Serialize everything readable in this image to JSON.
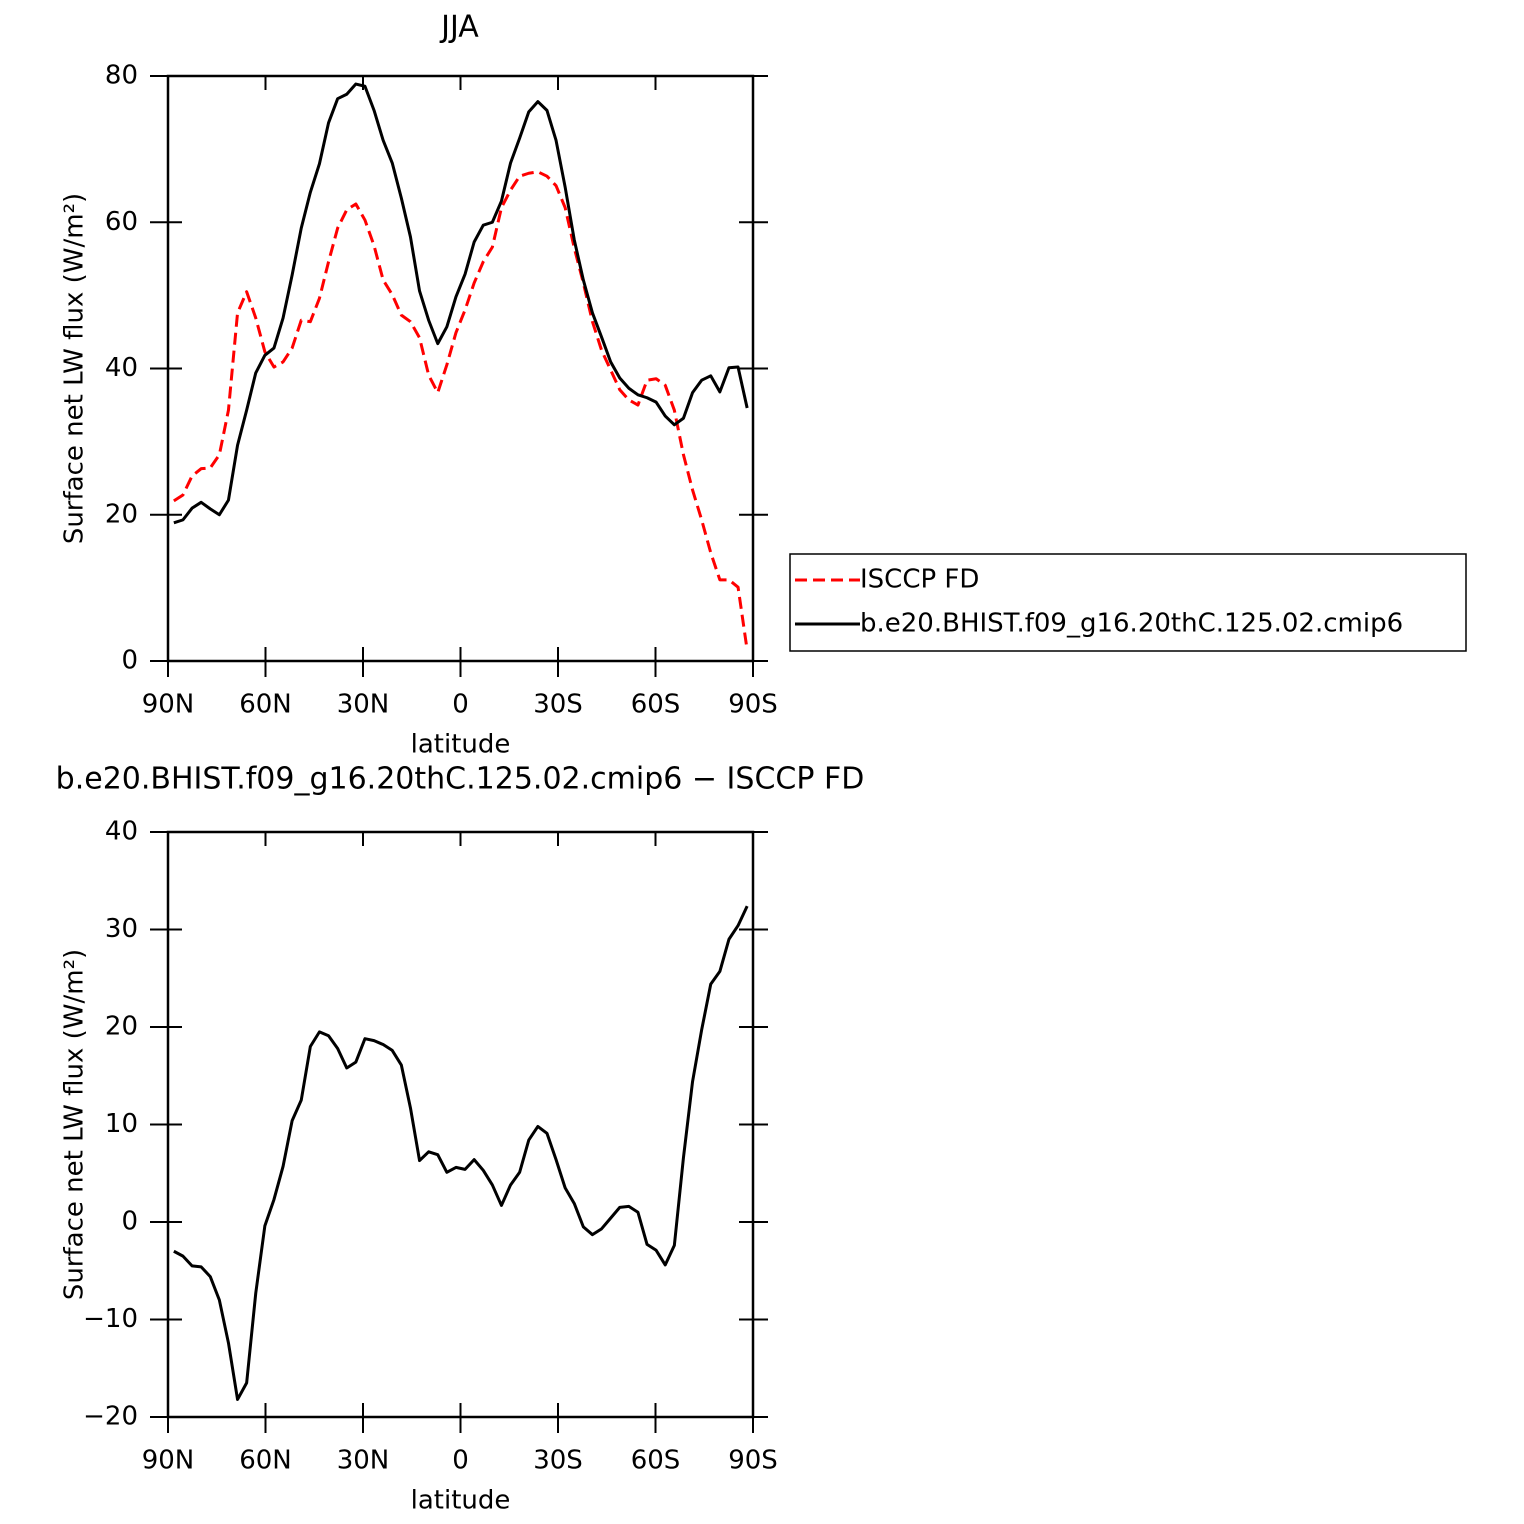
{
  "chart_data": [
    {
      "type": "line",
      "title": "JJA",
      "xlabel": "latitude",
      "ylabel": "Surface net LW flux (W/m²)",
      "x": [
        88.2,
        85.4,
        82.6,
        79.8,
        77,
        74.2,
        71.4,
        68.6,
        65.8,
        63,
        60.2,
        57.4,
        54.6,
        51.8,
        49,
        46.2,
        43.4,
        40.6,
        37.8,
        35,
        32.2,
        29.4,
        26.6,
        23.8,
        21,
        18.2,
        15.4,
        12.6,
        9.8,
        7,
        4.2,
        1.4,
        -1.4,
        -4.2,
        -7,
        -9.8,
        -12.6,
        -15.4,
        -18.2,
        -21,
        -23.8,
        -26.6,
        -29.4,
        -32.2,
        -35,
        -37.8,
        -40.6,
        -43.4,
        -46.2,
        -49,
        -51.8,
        -54.6,
        -57.4,
        -60.2,
        -63,
        -65.8,
        -68.6,
        -71.4,
        -74.2,
        -77,
        -79.8,
        -82.6,
        -85.4,
        -88.2
      ],
      "series": [
        {
          "name": "ISCCP FD",
          "color": "#ff0000",
          "linestyle": "dashed",
          "values": [
            21.9,
            22.7,
            25.3,
            26.3,
            26.4,
            28.2,
            34.3,
            47.6,
            50.5,
            46.9,
            42.3,
            40.2,
            40.9,
            42.8,
            46.6,
            46.4,
            49.6,
            54.6,
            59.2,
            61.7,
            62.5,
            60.3,
            56.8,
            52.1,
            50.1,
            47.3,
            46.4,
            44.2,
            39.1,
            36.7,
            40.5,
            44.9,
            48,
            51.7,
            54.6,
            56.6,
            62,
            64.4,
            66.3,
            66.7,
            66.9,
            66.3,
            65,
            62,
            56.5,
            51.7,
            46.4,
            42.5,
            39.8,
            37.1,
            35.7,
            35,
            38.4,
            38.6,
            37.7,
            34.3,
            28.2,
            23.4,
            19.3,
            14.8,
            11.1,
            11.1,
            10.1,
            1.5
          ]
        },
        {
          "name": "b.e20.BHIST.f09_g16.20thC.125.02.cmip6",
          "color": "#000000",
          "linestyle": "solid",
          "values": [
            18.9,
            19.3,
            20.9,
            21.7,
            20.8,
            20,
            22,
            29.5,
            34.3,
            39.4,
            41.8,
            42.8,
            46.9,
            52.8,
            59.2,
            64.1,
            68,
            73.6,
            76.9,
            77.5,
            78.9,
            78.6,
            75.3,
            71.2,
            68.1,
            63.3,
            58,
            50.6,
            46.6,
            43.4,
            45.7,
            49.8,
            52.9,
            57.3,
            59.6,
            60,
            62.9,
            68.1,
            71.5,
            75.1,
            76.5,
            75.3,
            71.2,
            64.8,
            57.6,
            52.1,
            47.6,
            44.3,
            40.9,
            38.7,
            37.3,
            36.4,
            36,
            35.4,
            33.5,
            32.3,
            33.2,
            36.7,
            38.4,
            39,
            36.8,
            40.1,
            40.2,
            34.6
          ]
        }
      ],
      "xlim": [
        90,
        -90
      ],
      "xticks": [
        {
          "value": 90,
          "label": "90N"
        },
        {
          "value": 60,
          "label": "60N"
        },
        {
          "value": 30,
          "label": "30N"
        },
        0,
        {
          "value": -30,
          "label": "30S"
        },
        {
          "value": -60,
          "label": "60S"
        },
        {
          "value": -90,
          "label": "90S"
        }
      ],
      "ylim": [
        0,
        80
      ],
      "yticks": [
        0,
        20,
        40,
        60,
        80
      ],
      "legend": "right"
    },
    {
      "type": "line",
      "title": "b.e20.BHIST.f09_g16.20thC.125.02.cmip6 − ISCCP FD",
      "xlabel": "latitude",
      "ylabel": "Surface net LW flux (W/m²)",
      "x": [
        88.2,
        85.4,
        82.6,
        79.8,
        77,
        74.2,
        71.4,
        68.6,
        65.8,
        63,
        60.2,
        57.4,
        54.6,
        51.8,
        49,
        46.2,
        43.4,
        40.6,
        37.8,
        35,
        32.2,
        29.4,
        26.6,
        23.8,
        21,
        18.2,
        15.4,
        12.6,
        9.8,
        7,
        4.2,
        1.4,
        -1.4,
        -4.2,
        -7,
        -9.8,
        -12.6,
        -15.4,
        -18.2,
        -21,
        -23.8,
        -26.6,
        -29.4,
        -32.2,
        -35,
        -37.8,
        -40.6,
        -43.4,
        -46.2,
        -49,
        -51.8,
        -54.6,
        -57.4,
        -60.2,
        -63,
        -65.8,
        -68.6,
        -71.4,
        -74.2,
        -77,
        -79.8,
        -82.6,
        -85.4,
        -88.2
      ],
      "series": [
        {
          "color": "#000000",
          "linestyle": "solid",
          "values": [
            -3,
            -3.5,
            -4.5,
            -4.6,
            -5.6,
            -8,
            -12.4,
            -18.2,
            -16.5,
            -7.3,
            -0.4,
            2.3,
            5.7,
            10.4,
            12.5,
            18,
            19.5,
            19.1,
            17.8,
            15.8,
            16.4,
            18.8,
            18.6,
            18.2,
            17.6,
            16.1,
            11.7,
            6.3,
            7.2,
            6.9,
            5.1,
            5.6,
            5.4,
            6.4,
            5.3,
            3.8,
            1.7,
            3.8,
            5.1,
            8.4,
            9.8,
            9.1,
            6.4,
            3.5,
            1.9,
            -0.5,
            -1.3,
            -0.7,
            0.4,
            1.5,
            1.6,
            1,
            -2.3,
            -2.9,
            -4.4,
            -2.4,
            6.6,
            14.4,
            19.7,
            24.4,
            25.7,
            29,
            30.4,
            32.4
          ]
        }
      ],
      "xlim": [
        90,
        -90
      ],
      "xticks": [
        {
          "value": 90,
          "label": "90N"
        },
        {
          "value": 60,
          "label": "60N"
        },
        {
          "value": 30,
          "label": "30N"
        },
        0,
        {
          "value": -30,
          "label": "30S"
        },
        {
          "value": -60,
          "label": "60S"
        },
        {
          "value": -90,
          "label": "90S"
        }
      ],
      "ylim": [
        -20,
        40
      ],
      "yticks": [
        {
          "value": -20,
          "label": "−20"
        },
        {
          "value": -10,
          "label": "−10"
        },
        0,
        10,
        20,
        30,
        40
      ]
    }
  ]
}
